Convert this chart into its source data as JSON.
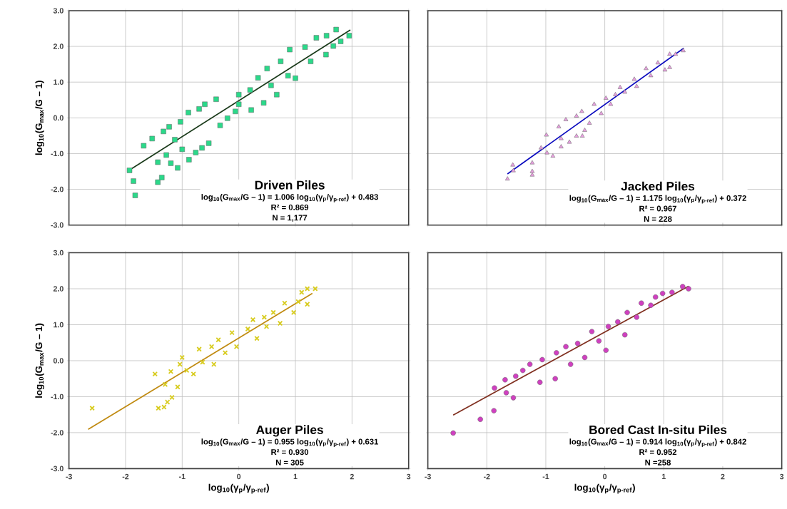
{
  "chart_data": [
    {
      "type": "scatter",
      "ylabel": "log$_{10}$(G$_{max}$/G – 1)",
      "xlim": [
        -3,
        3
      ],
      "ylim": [
        -3,
        3
      ],
      "xticks": [
        -3,
        -2,
        -1,
        0,
        1,
        2,
        3
      ],
      "yticks": [
        {
          "value": -3,
          "label": "-3.0"
        },
        {
          "value": -2,
          "label": "-2.0"
        },
        {
          "value": -1,
          "label": "-1.0"
        },
        {
          "value": 0,
          "label": "0.0"
        },
        {
          "value": 1,
          "label": "1.0"
        },
        {
          "value": 2,
          "label": "2.0"
        },
        {
          "value": 3,
          "label": "3.0"
        }
      ],
      "grid": true,
      "tick_labels": "y",
      "annotations": [
        "Driven Piles",
        "log$_{10}$(G$_{max}$/G – 1) = 1.006 log$_{10}$(γ$_{p}$/γ$_{p-ref}$) + 0.483",
        "R² = 0.869",
        "N = 1,177"
      ],
      "series": [
        {
          "marker": "square",
          "color": "#2bd98a",
          "x": [
            -1.93,
            -1.86,
            -1.83,
            -1.43,
            -1.36,
            -1.43,
            -1.28,
            -1.2,
            -1.08,
            -1.68,
            -1.53,
            -1.33,
            -1.23,
            -1.13,
            -1.0,
            -0.88,
            -0.76,
            -1.03,
            -0.89,
            -0.7,
            -0.65,
            -0.53,
            -0.6,
            -0.4,
            -0.33,
            -0.2,
            0.0,
            -0.06,
            0.2,
            0.22,
            0.34,
            0.44,
            0.5,
            0.67,
            0.74,
            0.87,
            0.9,
            1.0,
            1.17,
            1.27,
            1.37,
            1.54,
            1.55,
            1.67,
            1.72,
            1.8,
            1.95,
            0.0,
            0.57
          ],
          "values": [
            -1.47,
            -1.77,
            -2.17,
            -1.8,
            -1.67,
            -1.24,
            -1.04,
            -1.27,
            -1.4,
            -0.78,
            -0.58,
            -0.38,
            -0.25,
            -0.61,
            -0.88,
            -1.17,
            -0.97,
            -0.11,
            0.15,
            0.25,
            -0.84,
            -0.71,
            0.38,
            0.52,
            -0.21,
            -0.01,
            0.65,
            0.18,
            0.78,
            0.22,
            1.12,
            0.42,
            1.38,
            0.65,
            1.58,
            1.18,
            1.91,
            1.11,
            1.98,
            1.58,
            2.24,
            1.77,
            2.3,
            2.01,
            2.47,
            2.14,
            2.3,
            0.38,
            0.91
          ]
        },
        {
          "type": "line",
          "marker": "none",
          "line_style": "solid",
          "color": "#1a3a1a",
          "x": [
            -1.94,
            1.97
          ],
          "values": [
            -1.47,
            2.46
          ]
        }
      ]
    },
    {
      "type": "scatter",
      "xlim": [
        -3,
        3
      ],
      "ylim": [
        -3,
        3
      ],
      "xticks": [
        -3,
        -2,
        -1,
        0,
        1,
        2,
        3
      ],
      "yticks": [
        -3,
        -2,
        -1,
        0,
        1,
        2,
        3
      ],
      "grid": true,
      "tick_labels": false,
      "annotations": [
        "Jacked Piles",
        "log$_{10}$(G$_{max}$/G – 1) = 1.175 log$_{10}$(γ$_{p}$/γ$_{p-ref}$) + 0.372",
        "R² = 0.967",
        "N = 228"
      ],
      "series": [
        {
          "marker": "triangle",
          "color": "#e8a0e0",
          "x": [
            -1.65,
            -1.56,
            -1.55,
            -1.23,
            -1.23,
            -1.23,
            -1.08,
            -0.98,
            -0.88,
            -0.99,
            -0.78,
            -0.74,
            -0.74,
            -0.66,
            -0.6,
            -0.48,
            -0.48,
            -0.39,
            -0.38,
            -0.34,
            -0.26,
            -0.18,
            -0.06,
            0.02,
            0.1,
            0.18,
            0.26,
            0.34,
            0.5,
            0.54,
            0.7,
            0.78,
            0.9,
            1.02,
            1.1,
            1.1,
            1.2,
            1.33
          ],
          "values": [
            -1.71,
            -1.32,
            -1.48,
            -1.26,
            -1.5,
            -1.6,
            -0.84,
            -0.98,
            -1.07,
            -0.48,
            -0.25,
            -0.58,
            -0.81,
            -0.05,
            -0.68,
            0.05,
            -0.51,
            0.18,
            -0.51,
            -0.35,
            -0.15,
            0.38,
            0.12,
            0.55,
            0.38,
            0.65,
            0.85,
            0.72,
            1.08,
            0.88,
            1.38,
            1.18,
            1.54,
            1.34,
            1.41,
            1.78,
            1.78,
            1.88
          ]
        },
        {
          "type": "line",
          "marker": "none",
          "line_style": "solid",
          "color": "#1010c0",
          "x": [
            -1.65,
            1.34
          ],
          "values": [
            -1.57,
            1.95
          ]
        }
      ]
    },
    {
      "type": "scatter",
      "xlabel": "log$_{10}$(γ$_{p}$/γ$_{p-ref}$)",
      "ylabel": "log$_{10}$(G$_{max}$/G – 1)",
      "xlim": [
        -3,
        3
      ],
      "ylim": [
        -3,
        3
      ],
      "xticks": [
        -3,
        -2,
        -1,
        0,
        1,
        2,
        3
      ],
      "yticks": [
        {
          "value": -3,
          "label": "-3.0"
        },
        {
          "value": -2,
          "label": "-2.0"
        },
        {
          "value": -1,
          "label": "-1.0"
        },
        {
          "value": 0,
          "label": "0.0"
        },
        {
          "value": 1,
          "label": "1.0"
        },
        {
          "value": 2,
          "label": "2.0"
        },
        {
          "value": 3,
          "label": "3.0"
        }
      ],
      "grid": true,
      "annotations": [
        "Auger Piles",
        "log$_{10}$(G$_{max}$/G – 1) = 0.955 log$_{10}$(γ$_{p}$/γ$_{p-ref}$) + 0.631",
        "R² = 0.930",
        "N = 305"
      ],
      "series": [
        {
          "marker": "cross",
          "color": "#d8cc20",
          "x": [
            -2.59,
            -1.48,
            -1.42,
            -1.32,
            -1.26,
            -1.18,
            -1.3,
            -1.2,
            -1.08,
            -1.04,
            -1.0,
            -0.92,
            -0.8,
            -0.7,
            -0.64,
            -0.48,
            -0.44,
            -0.36,
            -0.24,
            -0.12,
            -0.04,
            0.16,
            0.25,
            0.32,
            0.49,
            0.61,
            0.73,
            0.81,
            0.97,
            1.05,
            1.11,
            1.21,
            1.21,
            1.35,
            0.45
          ],
          "values": [
            -1.32,
            -0.37,
            -1.32,
            -1.29,
            -1.15,
            -1.02,
            -0.66,
            -0.3,
            -0.73,
            -0.1,
            0.09,
            -0.27,
            -0.37,
            0.32,
            -0.04,
            0.39,
            -0.1,
            0.58,
            0.22,
            0.78,
            0.39,
            0.88,
            1.14,
            0.62,
            0.95,
            1.34,
            1.04,
            1.6,
            1.34,
            1.64,
            1.9,
            1.57,
            2.0,
            2.0,
            1.21
          ]
        },
        {
          "type": "line",
          "marker": "none",
          "line_style": "solid",
          "color": "#c08a10",
          "x": [
            -2.66,
            1.3
          ],
          "values": [
            -1.91,
            1.87
          ]
        }
      ]
    },
    {
      "type": "scatter",
      "xlabel": "log$_{10}$(γ$_{p}$/γ$_{p-ref}$)",
      "xlim": [
        -3,
        3
      ],
      "ylim": [
        -3,
        3
      ],
      "xticks": [
        -3,
        -2,
        -1,
        0,
        1,
        2,
        3
      ],
      "yticks": [
        -3,
        -2,
        -1,
        0,
        1,
        2,
        3
      ],
      "grid": true,
      "tick_labels": "x",
      "annotations": [
        "Bored Cast In-situ Piles",
        "log$_{10}$(G$_{max}$/G – 1) = 0.914 log$_{10}$(γ$_{p}$/γ$_{p-ref}$) + 0.842",
        "R² = 0.952",
        "N =258"
      ],
      "series": [
        {
          "marker": "circle",
          "color": "#d040c0",
          "x": [
            -2.57,
            -2.11,
            -1.88,
            -1.87,
            -1.67,
            -1.55,
            -1.69,
            -1.51,
            -1.39,
            -1.27,
            -1.1,
            -1.06,
            -0.84,
            -0.82,
            -0.66,
            -0.58,
            -0.46,
            -0.34,
            -0.22,
            -0.1,
            0.02,
            0.06,
            0.22,
            0.34,
            0.38,
            0.54,
            0.62,
            0.78,
            0.86,
            0.98,
            1.14,
            1.32,
            1.42
          ],
          "values": [
            -2.01,
            -1.63,
            -1.39,
            -0.76,
            -0.89,
            -1.03,
            -0.53,
            -0.43,
            -0.27,
            -0.1,
            -0.6,
            0.03,
            -0.5,
            0.22,
            0.39,
            -0.1,
            0.48,
            0.09,
            0.81,
            0.55,
            0.29,
            0.95,
            1.08,
            0.72,
            1.34,
            1.21,
            1.6,
            1.54,
            1.77,
            1.87,
            1.9,
            2.06,
            2.0
          ]
        },
        {
          "type": "line",
          "marker": "none",
          "line_style": "solid",
          "color": "#803020",
          "x": [
            -2.57,
            1.42
          ],
          "values": [
            -1.51,
            2.07
          ]
        }
      ]
    }
  ]
}
